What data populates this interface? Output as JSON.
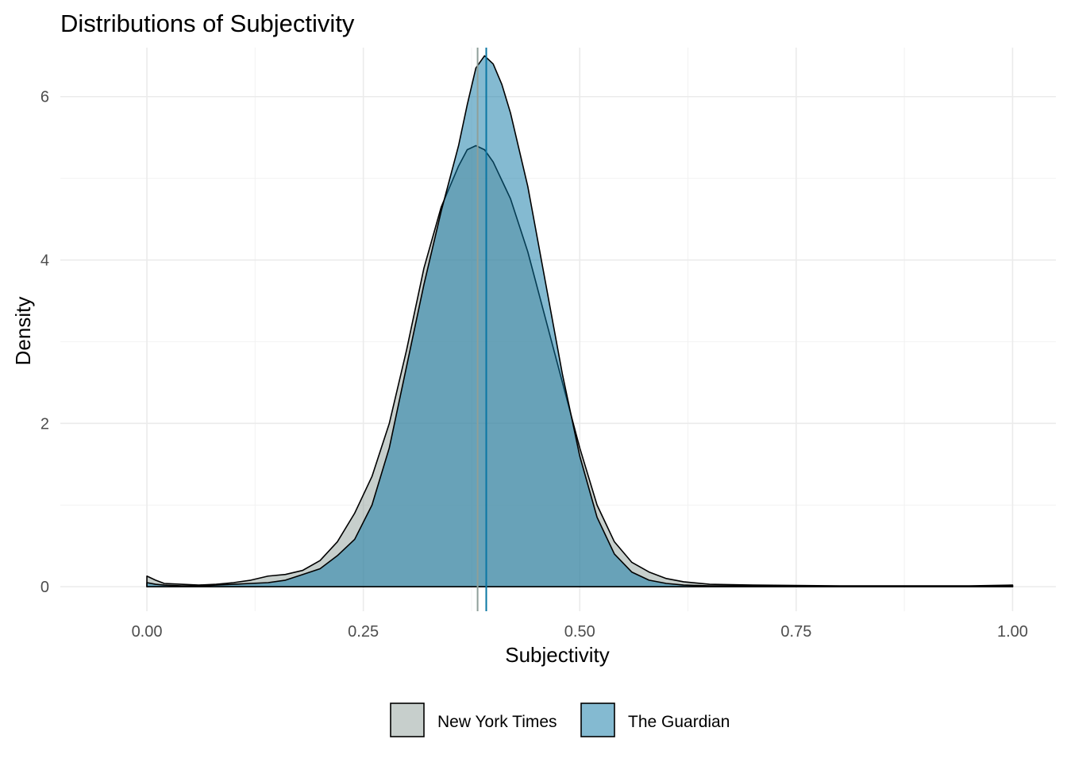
{
  "chart_data": {
    "type": "area",
    "subtype": "density",
    "title": "Distributions of Subjectivity",
    "xlabel": "Subjectivity",
    "ylabel": "Density",
    "xlim": [
      -0.1,
      1.05
    ],
    "ylim": [
      -0.3,
      6.6
    ],
    "x_ticks": [
      0.0,
      0.25,
      0.5,
      0.75,
      1.0
    ],
    "x_tick_labels": [
      "0.00",
      "0.25",
      "0.50",
      "0.75",
      "1.00"
    ],
    "y_ticks": [
      0,
      2,
      4,
      6
    ],
    "y_tick_labels": [
      "0",
      "2",
      "4",
      "6"
    ],
    "x_minor_ticks": [
      0.125,
      0.375,
      0.625,
      0.875
    ],
    "y_minor_ticks": [
      1,
      3,
      5
    ],
    "grid": true,
    "legend_position": "bottom",
    "series": [
      {
        "name": "New York Times",
        "color": "#8f9f99",
        "mean": 0.382,
        "x": [
          0.0,
          0.01,
          0.02,
          0.04,
          0.06,
          0.08,
          0.1,
          0.12,
          0.14,
          0.16,
          0.18,
          0.2,
          0.22,
          0.24,
          0.26,
          0.28,
          0.3,
          0.32,
          0.34,
          0.36,
          0.37,
          0.38,
          0.39,
          0.4,
          0.42,
          0.44,
          0.46,
          0.48,
          0.5,
          0.52,
          0.54,
          0.56,
          0.58,
          0.6,
          0.62,
          0.65,
          0.7,
          0.75,
          0.8,
          0.85,
          0.9,
          0.95,
          1.0
        ],
        "values": [
          0.13,
          0.08,
          0.04,
          0.03,
          0.02,
          0.03,
          0.05,
          0.08,
          0.13,
          0.15,
          0.2,
          0.32,
          0.55,
          0.9,
          1.35,
          2.0,
          2.9,
          3.9,
          4.65,
          5.15,
          5.35,
          5.4,
          5.35,
          5.2,
          4.75,
          4.1,
          3.3,
          2.5,
          1.7,
          1.0,
          0.55,
          0.3,
          0.18,
          0.1,
          0.06,
          0.03,
          0.02,
          0.015,
          0.01,
          0.01,
          0.01,
          0.01,
          0.02
        ]
      },
      {
        "name": "The Guardian",
        "color": "#0a76a3",
        "mean": 0.392,
        "x": [
          0.0,
          0.01,
          0.02,
          0.04,
          0.06,
          0.08,
          0.1,
          0.12,
          0.14,
          0.16,
          0.18,
          0.2,
          0.22,
          0.24,
          0.26,
          0.28,
          0.3,
          0.32,
          0.34,
          0.36,
          0.37,
          0.38,
          0.39,
          0.4,
          0.41,
          0.42,
          0.44,
          0.46,
          0.48,
          0.5,
          0.52,
          0.54,
          0.56,
          0.58,
          0.6,
          0.62,
          0.65,
          0.7,
          0.75,
          0.8,
          0.85,
          0.9,
          0.95,
          1.0
        ],
        "values": [
          0.05,
          0.03,
          0.02,
          0.01,
          0.01,
          0.02,
          0.03,
          0.04,
          0.05,
          0.08,
          0.15,
          0.22,
          0.38,
          0.58,
          1.0,
          1.7,
          2.7,
          3.7,
          4.6,
          5.4,
          5.9,
          6.35,
          6.5,
          6.4,
          6.15,
          5.8,
          4.9,
          3.75,
          2.6,
          1.6,
          0.85,
          0.4,
          0.18,
          0.08,
          0.04,
          0.02,
          0.01,
          0.01,
          0.01,
          0.005,
          0.005,
          0.005,
          0.005,
          0.01
        ]
      }
    ]
  }
}
